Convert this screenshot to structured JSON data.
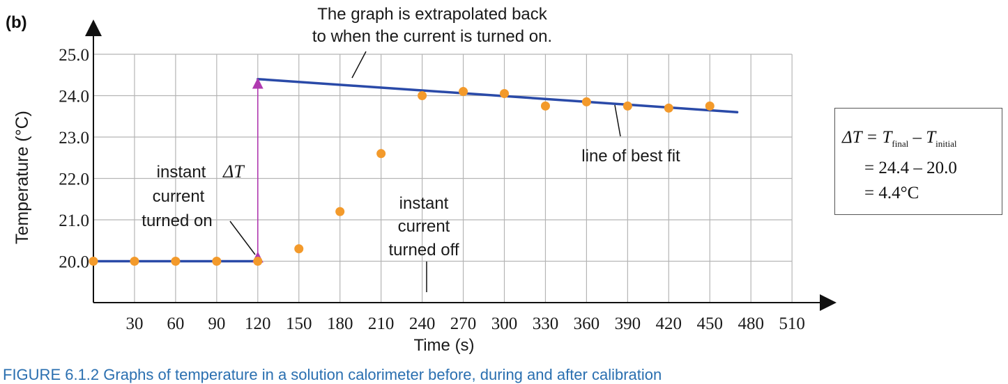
{
  "panel_label": "(b)",
  "chart_data": {
    "type": "scatter",
    "title": "",
    "xlabel": "Time (s)",
    "ylabel": "Temperature (°C)",
    "xlim": [
      0,
      510
    ],
    "ylim": [
      19.0,
      25.0
    ],
    "x_ticks": [
      30,
      60,
      90,
      120,
      150,
      180,
      210,
      240,
      270,
      300,
      330,
      360,
      390,
      420,
      450,
      480,
      510
    ],
    "y_ticks": [
      20.0,
      21.0,
      22.0,
      23.0,
      24.0,
      25.0
    ],
    "x_tick_labels": [
      "30",
      "60",
      "90",
      "120",
      "150",
      "180",
      "210",
      "240",
      "270",
      "300",
      "330",
      "360",
      "390",
      "420",
      "450",
      "480",
      "510"
    ],
    "y_tick_labels": [
      "20.0",
      "21.0",
      "22.0",
      "23.0",
      "24.0",
      "25.0"
    ],
    "grid": true,
    "points": {
      "color": "#f39a2b",
      "x": [
        0,
        30,
        60,
        90,
        120,
        150,
        180,
        210,
        240,
        270,
        300,
        330,
        360,
        390,
        420,
        450
      ],
      "y": [
        20.0,
        20.0,
        20.0,
        20.0,
        20.0,
        20.3,
        21.2,
        22.6,
        24.0,
        24.1,
        24.05,
        23.75,
        23.85,
        23.75,
        23.7,
        23.75
      ]
    },
    "lines": [
      {
        "x": [
          0,
          120
        ],
        "y": [
          20.0,
          20.0
        ],
        "color": "#2a4aa8"
      },
      {
        "x": [
          120,
          470
        ],
        "y": [
          24.4,
          23.6
        ],
        "color": "#2a4aa8"
      }
    ],
    "delta_arrow": {
      "x": 120,
      "y_from": 20.0,
      "y_to": 24.4,
      "color": "#b03ab0"
    },
    "annotations": {
      "extrapolated_line1": "The graph is extrapolated back",
      "extrapolated_line2": "to when the current is turned on.",
      "delta_symbol": "ΔT",
      "on_line1": "instant",
      "on_line2": "current",
      "on_line3": "turned on",
      "off_line1": "instant",
      "off_line2": "current",
      "off_line3": "turned off",
      "best_fit": "line of best fit"
    }
  },
  "formula": {
    "line1_prefix": "ΔT = T",
    "sub_final": "final",
    "minus": " – T",
    "sub_initial": "initial",
    "line2": "= 24.4 – 20.0",
    "line3": "= 4.4°C"
  },
  "caption": "FIGURE 6.1.2 Graphs of temperature in a solution calorimeter before, during and after calibration"
}
